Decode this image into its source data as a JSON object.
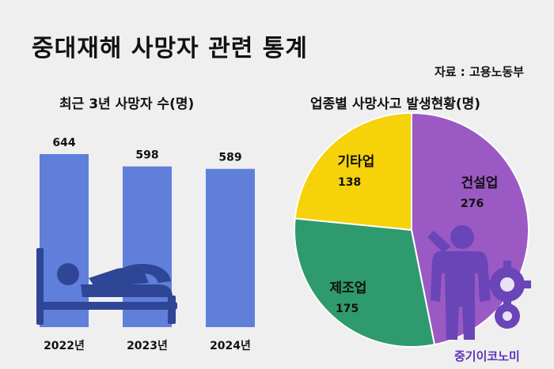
{
  "header": {
    "title": "중대재해 사망자 관련 통계",
    "source": "자료 : 고용노동부"
  },
  "logo_text": "중기이코노미",
  "colors": {
    "bar": "#5f7fdb",
    "icon": "#2f4596",
    "construction": "#9b59c4",
    "manufacturing": "#2e9a6e",
    "other": "#f5d20a"
  },
  "chart_data": [
    {
      "type": "bar",
      "title": "최근 3년 사망자 수(명)",
      "categories": [
        "2022년",
        "2023년",
        "2024년"
      ],
      "values": [
        644,
        598,
        589
      ],
      "ylim": [
        0,
        644
      ],
      "grid": false
    },
    {
      "type": "pie",
      "title": "업종별 사망사고 발생현황(명)",
      "slices": [
        {
          "name": "건설업",
          "value": 276,
          "color": "#9b59c4"
        },
        {
          "name": "제조업",
          "value": 175,
          "color": "#2e9a6e"
        },
        {
          "name": "기타업",
          "value": 138,
          "color": "#f5d20a"
        }
      ]
    }
  ]
}
